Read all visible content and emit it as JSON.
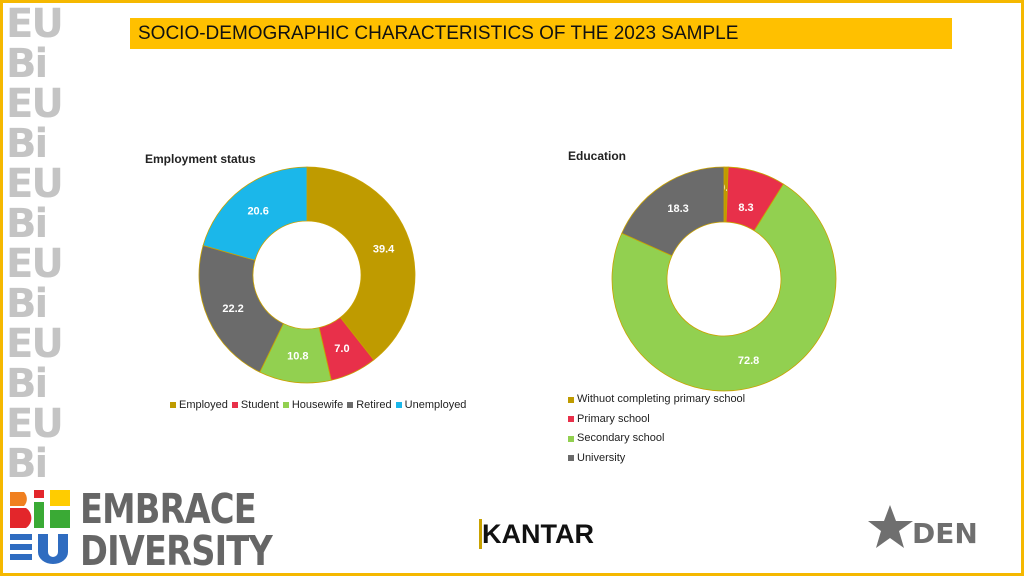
{
  "title": "SOCIO-DEMOGRAPHIC CHARACTERISTICS OF THE 2023 SAMPLE",
  "logos": {
    "embrace": "EMBRACE DIVERSITY",
    "embrace_line1": "EMBRACE",
    "embrace_line2": "DIVERSITY",
    "kantar": "KANTAR",
    "den": "DEN"
  },
  "chart_data": [
    {
      "type": "pie",
      "donut": true,
      "title": "Employment status",
      "categories": [
        "Employed",
        "Student",
        "Housewife",
        "Retired",
        "Unemployed"
      ],
      "values": [
        39.4,
        7.0,
        10.8,
        22.2,
        20.6
      ],
      "labels": [
        "39.4",
        "7.0",
        "10.8",
        "22.2",
        "20.6"
      ],
      "colors": [
        "#BF9B00",
        "#E8304A",
        "#92D050",
        "#6B6B6B",
        "#1BB7EA"
      ],
      "legend": "bottom"
    },
    {
      "type": "pie",
      "donut": true,
      "title": "Education",
      "categories": [
        "Withuot completing primary school",
        "Primary school",
        "Secondary school",
        "University"
      ],
      "values": [
        0.6,
        8.3,
        72.8,
        18.3
      ],
      "labels": [
        "0.6",
        "8.3",
        "72.8",
        "18.3"
      ],
      "colors": [
        "#BF9B00",
        "#E8304A",
        "#92D050",
        "#6B6B6B"
      ],
      "legend": "bottom"
    }
  ]
}
